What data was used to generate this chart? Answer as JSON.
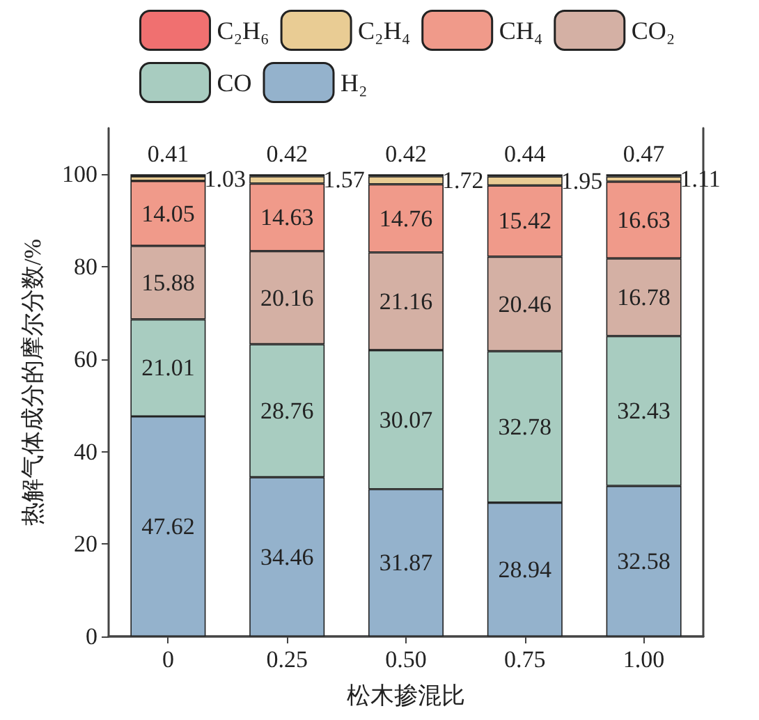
{
  "chart_data": {
    "type": "bar",
    "stacked": true,
    "xlabel": "松木掺混比",
    "ylabel": "热解气体成分的摩尔分数/%",
    "categories": [
      "0",
      "0.25",
      "0.50",
      "0.75",
      "1.00"
    ],
    "series": [
      {
        "name": "H₂",
        "color": "#94b2cc",
        "values": [
          47.62,
          34.46,
          31.87,
          28.94,
          32.58
        ]
      },
      {
        "name": "CO",
        "color": "#a8ccc0",
        "values": [
          21.01,
          28.76,
          30.07,
          32.78,
          32.43
        ]
      },
      {
        "name": "CO₂",
        "color": "#d4b0a4",
        "values": [
          15.88,
          20.16,
          21.16,
          20.46,
          16.78
        ]
      },
      {
        "name": "CH₄",
        "color": "#f09a8a",
        "values": [
          14.05,
          14.63,
          14.76,
          15.42,
          16.63
        ]
      },
      {
        "name": "C₂H₄",
        "color": "#e9cc94",
        "values": [
          1.03,
          1.57,
          1.72,
          1.95,
          1.11
        ]
      },
      {
        "name": "C₂H₆",
        "color": "#f07070",
        "values": [
          0.41,
          0.42,
          0.42,
          0.44,
          0.47
        ]
      }
    ],
    "ylim": [
      0,
      110
    ],
    "yticks": [
      0,
      20,
      40,
      60,
      80,
      100
    ],
    "data_labels": true,
    "legend": "top",
    "grid": false
  }
}
